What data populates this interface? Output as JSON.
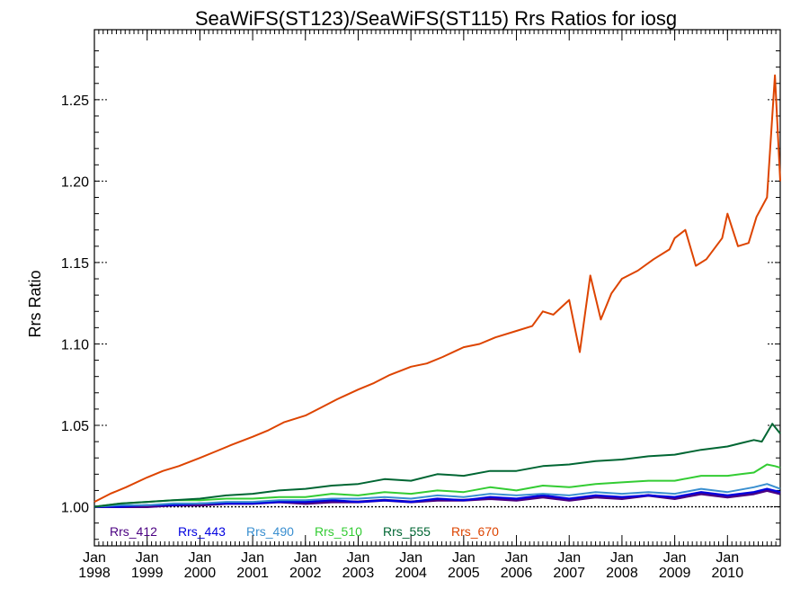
{
  "chart_data": {
    "type": "line",
    "title": "SeaWiFS(ST123)/SeaWiFS(ST115)  Rrs Ratios for iosg",
    "xlabel": "",
    "ylabel": "Rrs Ratio",
    "xlim": [
      1998.0,
      2011.0
    ],
    "ylim": [
      0.976,
      1.293
    ],
    "y_ticks": [
      1.0,
      1.05,
      1.1,
      1.15,
      1.2,
      1.25
    ],
    "y_tick_labels": [
      "1.00",
      "1.05",
      "1.10",
      "1.15",
      "1.20",
      "1.25"
    ],
    "x_ticks": [
      {
        "x": 1998,
        "month": "Jan",
        "year": "1998"
      },
      {
        "x": 1999,
        "month": "Jan",
        "year": "1999"
      },
      {
        "x": 2000,
        "month": "Jan",
        "year": "2000"
      },
      {
        "x": 2001,
        "month": "Jan",
        "year": "2001"
      },
      {
        "x": 2002,
        "month": "Jan",
        "year": "2002"
      },
      {
        "x": 2003,
        "month": "Jan",
        "year": "2003"
      },
      {
        "x": 2004,
        "month": "Jan",
        "year": "2004"
      },
      {
        "x": 2005,
        "month": "Jan",
        "year": "2005"
      },
      {
        "x": 2006,
        "month": "Jan",
        "year": "2006"
      },
      {
        "x": 2007,
        "month": "Jan",
        "year": "2007"
      },
      {
        "x": 2008,
        "month": "Jan",
        "year": "2008"
      },
      {
        "x": 2009,
        "month": "Jan",
        "year": "2009"
      },
      {
        "x": 2010,
        "month": "Jan",
        "year": "2010"
      }
    ],
    "reference_line": 1.0,
    "grid": "dotted tick marks at y ticks",
    "legend_position": "bottom-left",
    "series": [
      {
        "name": "Rrs_412",
        "color": "#4b0082",
        "width": 3.0,
        "x": [
          1998.0,
          1998.5,
          1999.0,
          1999.5,
          2000.0,
          2000.5,
          2001.0,
          2001.5,
          2002.0,
          2002.5,
          2003.0,
          2003.5,
          2004.0,
          2004.5,
          2005.0,
          2005.5,
          2006.0,
          2006.5,
          2007.0,
          2007.5,
          2008.0,
          2008.5,
          2009.0,
          2009.5,
          2010.0,
          2010.5,
          2010.75,
          2011.0
        ],
        "y": [
          1.0,
          1.0,
          1.0,
          1.001,
          1.001,
          1.002,
          1.002,
          1.003,
          1.002,
          1.003,
          1.003,
          1.004,
          1.003,
          1.004,
          1.004,
          1.005,
          1.004,
          1.006,
          1.004,
          1.006,
          1.005,
          1.007,
          1.005,
          1.008,
          1.006,
          1.008,
          1.01,
          1.008
        ]
      },
      {
        "name": "Rrs_443",
        "color": "#0000e0",
        "width": 2.2,
        "x": [
          1998.0,
          1998.5,
          1999.0,
          1999.5,
          2000.0,
          2000.5,
          2001.0,
          2001.5,
          2002.0,
          2002.5,
          2003.0,
          2003.5,
          2004.0,
          2004.5,
          2005.0,
          2005.5,
          2006.0,
          2006.5,
          2007.0,
          2007.5,
          2008.0,
          2008.5,
          2009.0,
          2009.5,
          2010.0,
          2010.5,
          2010.75,
          2011.0
        ],
        "y": [
          1.0,
          1.0,
          1.001,
          1.001,
          1.002,
          1.002,
          1.002,
          1.003,
          1.003,
          1.004,
          1.003,
          1.004,
          1.003,
          1.005,
          1.004,
          1.006,
          1.005,
          1.007,
          1.005,
          1.007,
          1.006,
          1.007,
          1.006,
          1.009,
          1.007,
          1.009,
          1.011,
          1.009
        ]
      },
      {
        "name": "Rrs_490",
        "color": "#3a8fd0",
        "width": 2.0,
        "x": [
          1998.0,
          1998.5,
          1999.0,
          1999.5,
          2000.0,
          2000.5,
          2001.0,
          2001.5,
          2002.0,
          2002.5,
          2003.0,
          2003.5,
          2004.0,
          2004.5,
          2005.0,
          2005.5,
          2006.0,
          2006.5,
          2007.0,
          2007.5,
          2008.0,
          2008.5,
          2009.0,
          2009.5,
          2010.0,
          2010.5,
          2010.75,
          2011.0
        ],
        "y": [
          1.0,
          1.001,
          1.001,
          1.002,
          1.002,
          1.003,
          1.003,
          1.004,
          1.004,
          1.005,
          1.005,
          1.006,
          1.005,
          1.007,
          1.006,
          1.008,
          1.007,
          1.008,
          1.007,
          1.009,
          1.008,
          1.009,
          1.008,
          1.011,
          1.009,
          1.012,
          1.014,
          1.011
        ]
      },
      {
        "name": "Rrs_510",
        "color": "#33cc33",
        "width": 2.0,
        "x": [
          1998.0,
          1998.5,
          1999.0,
          1999.5,
          2000.0,
          2000.5,
          2001.0,
          2001.5,
          2002.0,
          2002.5,
          2003.0,
          2003.5,
          2004.0,
          2004.5,
          2005.0,
          2005.5,
          2006.0,
          2006.5,
          2007.0,
          2007.5,
          2008.0,
          2008.5,
          2009.0,
          2009.5,
          2010.0,
          2010.25,
          2010.5,
          2010.75,
          2010.9,
          2011.0
        ],
        "y": [
          1.0,
          1.002,
          1.003,
          1.004,
          1.004,
          1.005,
          1.005,
          1.006,
          1.006,
          1.008,
          1.007,
          1.009,
          1.008,
          1.01,
          1.009,
          1.012,
          1.01,
          1.013,
          1.012,
          1.014,
          1.015,
          1.016,
          1.016,
          1.019,
          1.019,
          1.02,
          1.021,
          1.026,
          1.025,
          1.024
        ]
      },
      {
        "name": "Rrs_555",
        "color": "#006633",
        "width": 2.0,
        "x": [
          1998.0,
          1998.5,
          1999.0,
          1999.5,
          2000.0,
          2000.5,
          2001.0,
          2001.5,
          2002.0,
          2002.5,
          2003.0,
          2003.5,
          2004.0,
          2004.5,
          2005.0,
          2005.5,
          2006.0,
          2006.5,
          2007.0,
          2007.5,
          2008.0,
          2008.5,
          2009.0,
          2009.5,
          2010.0,
          2010.25,
          2010.5,
          2010.65,
          2010.85,
          2011.0
        ],
        "y": [
          1.0,
          1.002,
          1.003,
          1.004,
          1.005,
          1.007,
          1.008,
          1.01,
          1.011,
          1.013,
          1.014,
          1.017,
          1.016,
          1.02,
          1.019,
          1.022,
          1.022,
          1.025,
          1.026,
          1.028,
          1.029,
          1.031,
          1.032,
          1.035,
          1.037,
          1.039,
          1.041,
          1.04,
          1.051,
          1.045
        ]
      },
      {
        "name": "Rrs_670",
        "color": "#dd4400",
        "width": 2.0,
        "x": [
          1998.0,
          1998.3,
          1998.6,
          1999.0,
          1999.3,
          1999.6,
          2000.0,
          2000.3,
          2000.6,
          2001.0,
          2001.3,
          2001.6,
          2002.0,
          2002.3,
          2002.6,
          2003.0,
          2003.3,
          2003.6,
          2004.0,
          2004.3,
          2004.6,
          2005.0,
          2005.3,
          2005.6,
          2006.0,
          2006.3,
          2006.5,
          2006.7,
          2007.0,
          2007.2,
          2007.4,
          2007.6,
          2007.8,
          2008.0,
          2008.3,
          2008.6,
          2008.9,
          2009.0,
          2009.2,
          2009.4,
          2009.6,
          2009.9,
          2010.0,
          2010.2,
          2010.4,
          2010.55,
          2010.75,
          2010.9,
          2011.0
        ],
        "y": [
          1.003,
          1.008,
          1.012,
          1.018,
          1.022,
          1.025,
          1.03,
          1.034,
          1.038,
          1.043,
          1.047,
          1.052,
          1.056,
          1.061,
          1.066,
          1.072,
          1.076,
          1.081,
          1.086,
          1.088,
          1.092,
          1.098,
          1.1,
          1.104,
          1.108,
          1.111,
          1.12,
          1.118,
          1.127,
          1.095,
          1.142,
          1.115,
          1.131,
          1.14,
          1.145,
          1.152,
          1.158,
          1.165,
          1.17,
          1.148,
          1.152,
          1.165,
          1.18,
          1.16,
          1.162,
          1.178,
          1.19,
          1.265,
          1.2
        ]
      }
    ]
  }
}
